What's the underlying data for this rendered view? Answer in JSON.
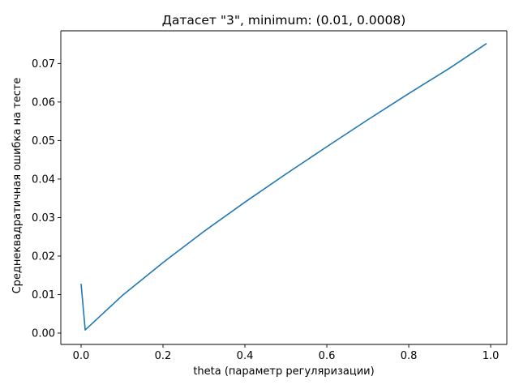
{
  "chart_data": {
    "type": "line",
    "title": "Датасет \"3\", minimum: (0.01, 0.0008)",
    "xlabel": "theta (параметр регуляризации)",
    "ylabel": "Среднеквадратичная ошибка на тесте",
    "xlim": [
      -0.0495,
      1.0395
    ],
    "ylim": [
      -0.00295,
      0.0785
    ],
    "x_ticks": [
      0.0,
      0.2,
      0.4,
      0.6,
      0.8,
      1.0
    ],
    "x_tick_labels": [
      "0.0",
      "0.2",
      "0.4",
      "0.6",
      "0.8",
      "1.0"
    ],
    "y_ticks": [
      0.0,
      0.01,
      0.02,
      0.03,
      0.04,
      0.05,
      0.06,
      0.07
    ],
    "y_tick_labels": [
      "0.00",
      "0.01",
      "0.02",
      "0.03",
      "0.04",
      "0.05",
      "0.06",
      "0.07"
    ],
    "grid": false,
    "line_color": "#1f77b4",
    "series": [
      {
        "x": [
          0.0,
          0.01,
          0.1,
          0.2,
          0.3,
          0.4,
          0.5,
          0.6,
          0.7,
          0.8,
          0.9,
          0.99
        ],
        "y": [
          0.0128,
          0.0008,
          0.0097,
          0.0183,
          0.0264,
          0.034,
          0.0413,
          0.0484,
          0.0554,
          0.0622,
          0.0688,
          0.0752
        ]
      }
    ]
  }
}
